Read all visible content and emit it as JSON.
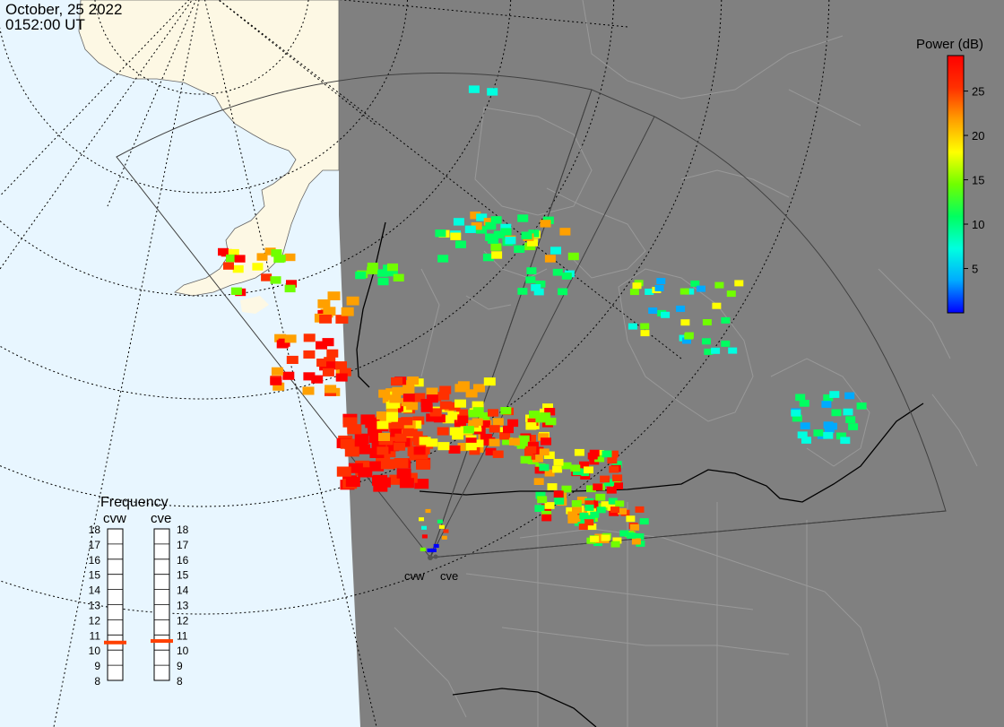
{
  "header": {
    "date": "October, 25 2022",
    "time": "0152:00 UT"
  },
  "colorbar": {
    "title": "Power (dB)",
    "ticks": [
      "25",
      "20",
      "15",
      "10",
      "5"
    ],
    "tick_values": [
      25,
      20,
      15,
      10,
      5
    ],
    "min": 0,
    "max": 29,
    "colors": [
      "#0000ff",
      "#00aaff",
      "#00ffe0",
      "#00ff60",
      "#70ff00",
      "#ffff00",
      "#ffa000",
      "#ff3000",
      "#ff0000"
    ]
  },
  "radars": [
    {
      "code": "cvw",
      "frequency_mhz": 10.5
    },
    {
      "code": "cve",
      "frequency_mhz": 10.6
    }
  ],
  "frequency_panel": {
    "title": "Frequency",
    "ticks": [
      "18",
      "17",
      "16",
      "15",
      "14",
      "13",
      "12",
      "11",
      "10",
      "9",
      "8"
    ],
    "min": 8,
    "max": 18,
    "marker_color": "#ff4000"
  },
  "colors": {
    "ocean": "#e8f6ff",
    "land_sunlit": "#fdf8e4",
    "night": "#808080",
    "borders": "#000000",
    "fov_outline": "#404040"
  }
}
